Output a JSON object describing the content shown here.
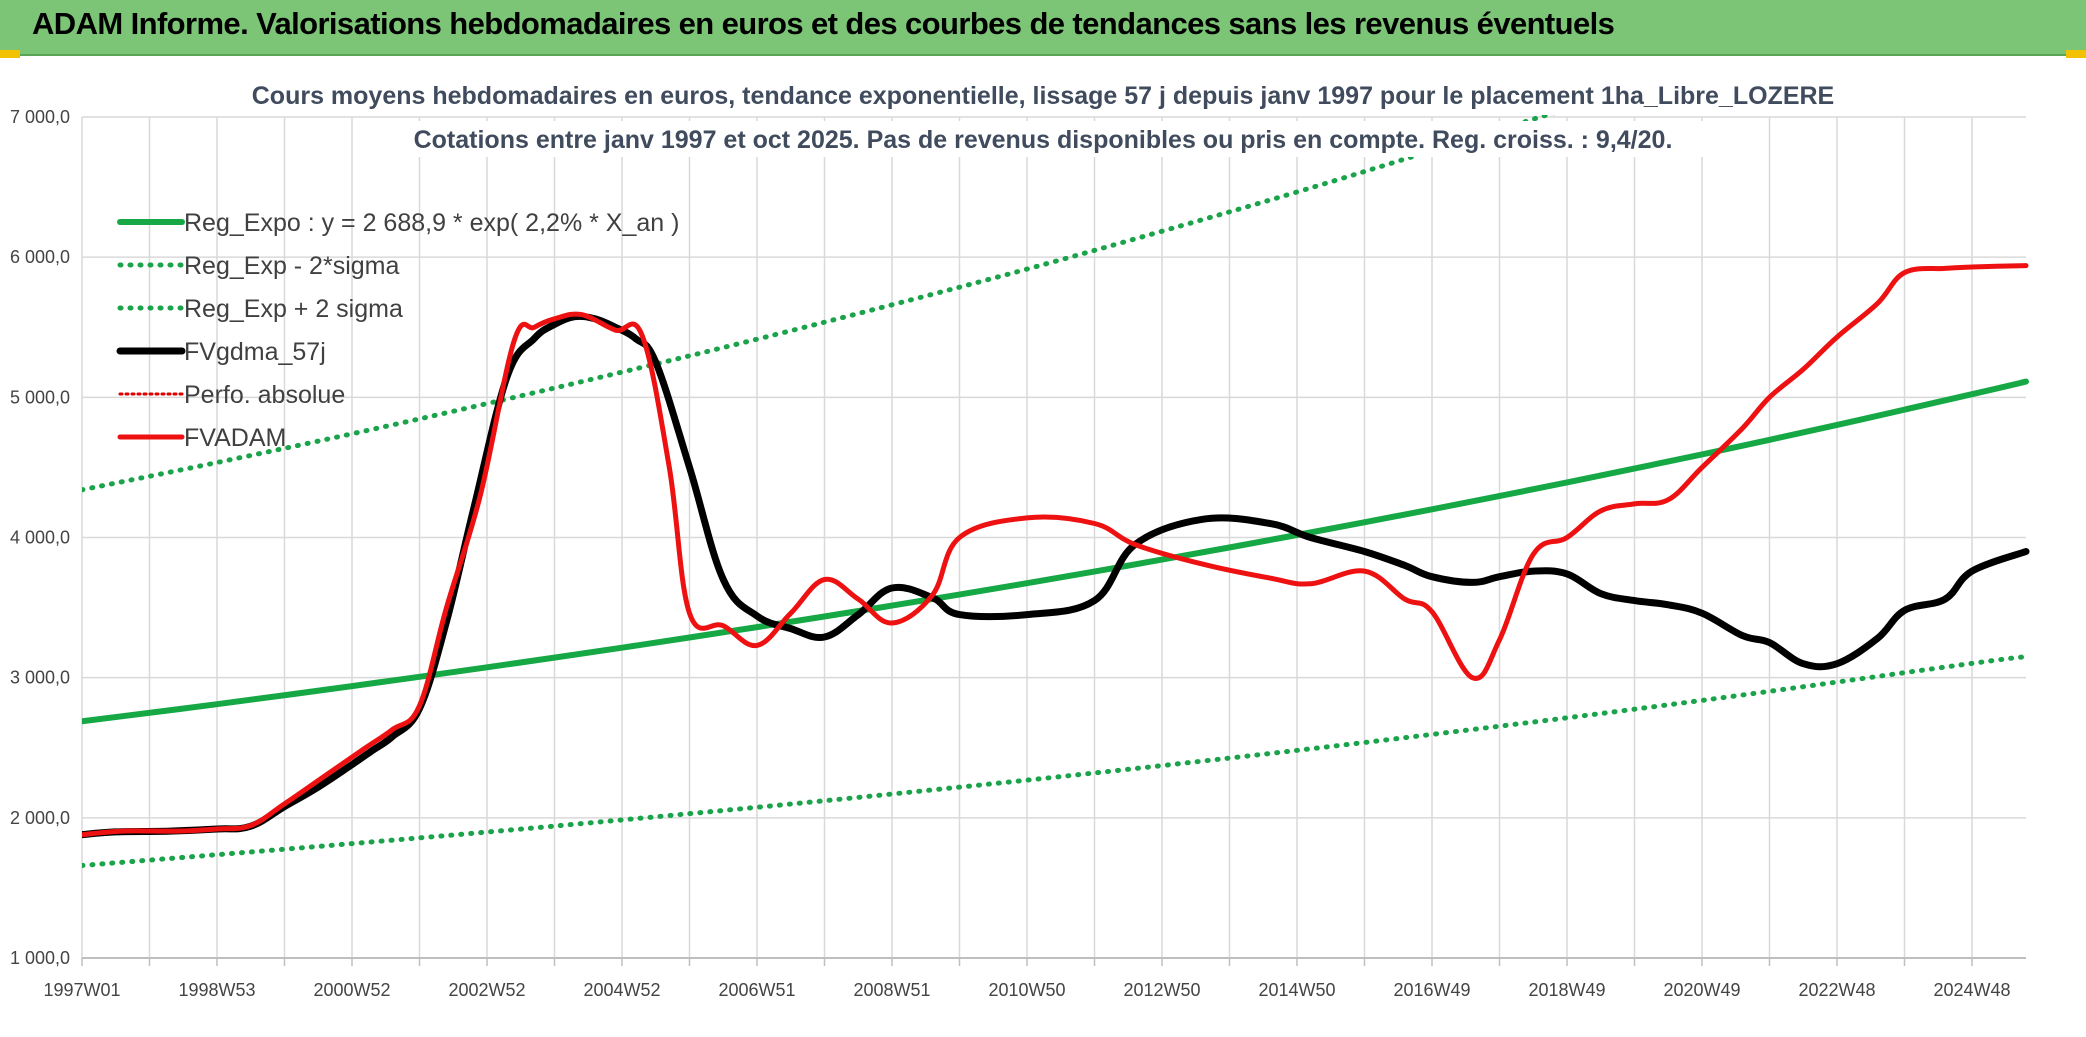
{
  "header": {
    "title": "ADAM Informe. Valorisations hebdomadaires en euros et des courbes de tendances sans les revenus éventuels"
  },
  "colors": {
    "banner": "#7cc576",
    "reg_expo": "#16a845",
    "sigma": "#1aa34a",
    "fvgdma": "#000000",
    "perfo": "#e00000",
    "fvadam": "#ee1111",
    "grid": "#d9d9d9"
  },
  "chart_data": {
    "type": "line",
    "title_lines": [
      "Cours moyens hebdomadaires en euros, tendance exponentielle, lissage 57 j depuis janv 1997 pour le placement 1ha_Libre_LOZERE",
      "Cotations entre janv 1997 et oct 2025. Pas de revenus disponibles ou pris en compte. Reg. croiss. : 9,4/20."
    ],
    "ylim": [
      1000,
      7000
    ],
    "xlim": [
      1997.0,
      2025.8
    ],
    "y_ticks": [
      {
        "value": 1000,
        "label": "1 000,0"
      },
      {
        "value": 2000,
        "label": "2 000,0"
      },
      {
        "value": 3000,
        "label": "3 000,0"
      },
      {
        "value": 4000,
        "label": "4 000,0"
      },
      {
        "value": 5000,
        "label": "5 000,0"
      },
      {
        "value": 6000,
        "label": "6 000,0"
      },
      {
        "value": 7000,
        "label": "7 000,0"
      }
    ],
    "x_ticks": [
      {
        "value": 1997.0,
        "label": "1997W01"
      },
      {
        "value": 1999.0,
        "label": "1998W53"
      },
      {
        "value": 2001.0,
        "label": "2000W52"
      },
      {
        "value": 2003.0,
        "label": "2002W52"
      },
      {
        "value": 2005.0,
        "label": "2004W52"
      },
      {
        "value": 2007.0,
        "label": "2006W51"
      },
      {
        "value": 2009.0,
        "label": "2008W51"
      },
      {
        "value": 2011.0,
        "label": "2010W50"
      },
      {
        "value": 2013.0,
        "label": "2012W50"
      },
      {
        "value": 2015.0,
        "label": "2014W50"
      },
      {
        "value": 2017.0,
        "label": "2016W49"
      },
      {
        "value": 2019.0,
        "label": "2018W49"
      },
      {
        "value": 2021.0,
        "label": "2020W49"
      },
      {
        "value": 2023.0,
        "label": "2022W48"
      },
      {
        "value": 2025.0,
        "label": "2024W48"
      }
    ],
    "minor_x_ticks": [
      1998.0,
      2000.0,
      2002.0,
      2004.0,
      2006.0,
      2008.0,
      2010.0,
      2012.0,
      2014.0,
      2016.0,
      2018.0,
      2020.0,
      2022.0,
      2024.0
    ],
    "series": [
      {
        "name": "Reg_Expo : y = 2 688,9 * exp( 2,2% *  X_an )",
        "style": "solid-green",
        "x": [
          1997.0,
          1999.0,
          2001.0,
          2003.0,
          2005.0,
          2007.0,
          2009.0,
          2011.0,
          2013.0,
          2015.0,
          2017.0,
          2019.0,
          2021.0,
          2023.0,
          2025.0,
          2025.8
        ],
        "y": [
          2689,
          2811,
          2940,
          3074,
          3214,
          3361,
          3514,
          3674,
          3842,
          4018,
          4201,
          4393,
          4593,
          4803,
          5022,
          5112
        ]
      },
      {
        "name": "Reg_Exp - 2*sigma",
        "style": "dotted-green",
        "x": [
          1997.0,
          2001.0,
          2005.0,
          2009.0,
          2013.0,
          2017.0,
          2021.0,
          2025.0,
          2025.8
        ],
        "y": [
          1660,
          1816,
          1985,
          2170,
          2373,
          2595,
          2838,
          3102,
          3150
        ]
      },
      {
        "name": "Reg_Exp + 2 sigma",
        "style": "dotted-green",
        "x": [
          1997.0,
          1999.0,
          2001.0,
          2003.0,
          2005.0,
          2007.0,
          2009.0,
          2011.0,
          2013.0,
          2015.0,
          2017.0,
          2019.0
        ],
        "y": [
          4340,
          4535,
          4740,
          4955,
          5180,
          5415,
          5660,
          5915,
          6185,
          6465,
          6760,
          7060
        ]
      },
      {
        "name": "FVgdma_57j",
        "style": "solid-black",
        "x": [
          1997.0,
          1997.5,
          1998.3,
          1999.0,
          1999.5,
          2000.0,
          2000.5,
          2001.0,
          2001.3,
          2001.6,
          2002.0,
          2002.4,
          2002.8,
          2003.3,
          2003.7,
          2004.0,
          2004.3,
          2004.6,
          2004.9,
          2005.2,
          2005.5,
          2006.0,
          2006.5,
          2007.0,
          2007.5,
          2008.0,
          2008.5,
          2009.0,
          2009.6,
          2010.0,
          2011.0,
          2012.0,
          2012.6,
          2013.6,
          2014.6,
          2015.2,
          2016.0,
          2016.6,
          2017.0,
          2017.6,
          2018.0,
          2018.5,
          2019.0,
          2019.5,
          2020.0,
          2020.5,
          2021.0,
          2021.6,
          2022.0,
          2022.5,
          2023.0,
          2023.6,
          2024.0,
          2024.6,
          2025.0,
          2025.8
        ],
        "y": [
          1880,
          1900,
          1905,
          1920,
          1940,
          2080,
          2220,
          2380,
          2480,
          2580,
          2780,
          3400,
          4200,
          5150,
          5420,
          5520,
          5575,
          5560,
          5500,
          5420,
          5250,
          4500,
          3700,
          3440,
          3350,
          3290,
          3450,
          3640,
          3570,
          3450,
          3450,
          3550,
          3950,
          4130,
          4100,
          4000,
          3900,
          3800,
          3720,
          3680,
          3720,
          3760,
          3740,
          3600,
          3550,
          3520,
          3460,
          3300,
          3250,
          3100,
          3100,
          3280,
          3480,
          3560,
          3760,
          3900
        ]
      },
      {
        "name": "Perfo. absolue",
        "style": "dotted-red",
        "x": [],
        "y": []
      },
      {
        "name": "FVADAM",
        "style": "solid-red",
        "x": [
          1997.0,
          1997.6,
          1998.4,
          1999.0,
          1999.5,
          2000.0,
          2000.6,
          2001.2,
          2001.6,
          2002.0,
          2002.4,
          2002.9,
          2003.4,
          2003.7,
          2004.0,
          2004.4,
          2004.9,
          2005.3,
          2005.7,
          2006.0,
          2006.5,
          2007.0,
          2007.5,
          2008.0,
          2008.5,
          2009.0,
          2009.6,
          2010.0,
          2011.0,
          2012.0,
          2012.6,
          2013.6,
          2014.6,
          2015.2,
          2016.0,
          2016.6,
          2017.0,
          2017.6,
          2018.0,
          2018.5,
          2019.0,
          2019.5,
          2020.0,
          2020.5,
          2021.0,
          2021.6,
          2022.0,
          2022.5,
          2023.0,
          2023.6,
          2024.0,
          2024.6,
          2025.0,
          2025.8
        ],
        "y": [
          1880,
          1905,
          1905,
          1920,
          1945,
          2100,
          2300,
          2500,
          2630,
          2800,
          3500,
          4300,
          5400,
          5500,
          5560,
          5590,
          5480,
          5440,
          4500,
          3460,
          3370,
          3230,
          3460,
          3700,
          3560,
          3390,
          3590,
          4000,
          4140,
          4100,
          3950,
          3810,
          3710,
          3670,
          3760,
          3560,
          3470,
          3000,
          3270,
          3880,
          4000,
          4190,
          4240,
          4270,
          4500,
          4780,
          5000,
          5200,
          5430,
          5670,
          5890,
          5920,
          5930,
          5940
        ]
      }
    ],
    "legend": {
      "position": "top-left",
      "entries": [
        {
          "label": "Reg_Expo : y = 2 688,9 * exp( 2,2% *  X_an )",
          "style": "solid-green"
        },
        {
          "label": "Reg_Exp - 2*sigma",
          "style": "dotted-green"
        },
        {
          "label": "Reg_Exp + 2 sigma",
          "style": "dotted-green"
        },
        {
          "label": "FVgdma_57j",
          "style": "solid-black"
        },
        {
          "label": "Perfo. absolue",
          "style": "dotted-red"
        },
        {
          "label": "FVADAM",
          "style": "solid-red"
        }
      ]
    },
    "grid": true
  }
}
